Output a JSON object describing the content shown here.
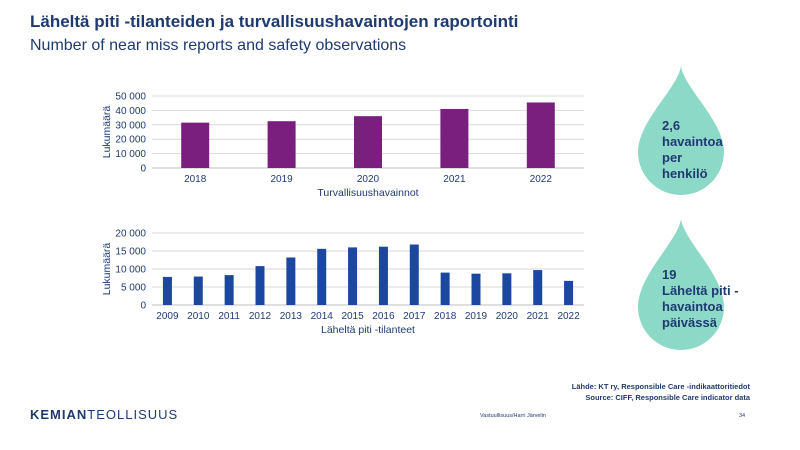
{
  "title": "Läheltä piti -tilanteiden ja turvallisuushavaintojen raportointi",
  "subtitle": "Number of near miss reports and safety observations",
  "chart_data": [
    {
      "type": "bar",
      "color": "#7b1f7e",
      "categories": [
        "2018",
        "2019",
        "2020",
        "2021",
        "2022"
      ],
      "values": [
        31500,
        32500,
        36000,
        41000,
        45500
      ],
      "xlabel": "Turvallisuushavainnot",
      "ylabel": "Lukumäärä",
      "ylim": [
        0,
        50000
      ],
      "yticks": [
        0,
        10000,
        20000,
        30000,
        40000,
        50000
      ],
      "ytick_labels": [
        "0",
        "10 000",
        "20 000",
        "30 000",
        "40 000",
        "50 000"
      ],
      "grid": true
    },
    {
      "type": "bar",
      "color": "#1b47a1",
      "categories": [
        "2009",
        "2010",
        "2011",
        "2012",
        "2013",
        "2014",
        "2015",
        "2016",
        "2017",
        "2018",
        "2019",
        "2020",
        "2021",
        "2022"
      ],
      "values": [
        7800,
        7900,
        8300,
        10800,
        13200,
        15600,
        16000,
        16200,
        16800,
        9000,
        8700,
        8800,
        9700,
        6700
      ],
      "xlabel": "Läheltä piti -tilanteet",
      "ylabel": "Lukumäärä",
      "ylim": [
        0,
        20000
      ],
      "yticks": [
        0,
        5000,
        10000,
        15000,
        20000
      ],
      "ytick_labels": [
        "0",
        "5 000",
        "10 000",
        "15 000",
        "20 000"
      ],
      "grid": true
    }
  ],
  "drops": [
    {
      "text": "2,6\nhavaintoa\nper\nhenkilö"
    },
    {
      "text": "19\nLäheltä piti -\nhavaintoa\npäivässä"
    }
  ],
  "drop_color": "#8dd9c8",
  "source_lines": [
    "Lähde: KT ry, Responsible Care -indikaattoritiedot",
    "Source: CIFF, Responsible Care indicator data"
  ],
  "logo": {
    "bold": "KEMIAN",
    "light": "TEOLLISUUS"
  },
  "footer_text": "Vastuullisuus/Harri Järvelin",
  "page_number": "34"
}
